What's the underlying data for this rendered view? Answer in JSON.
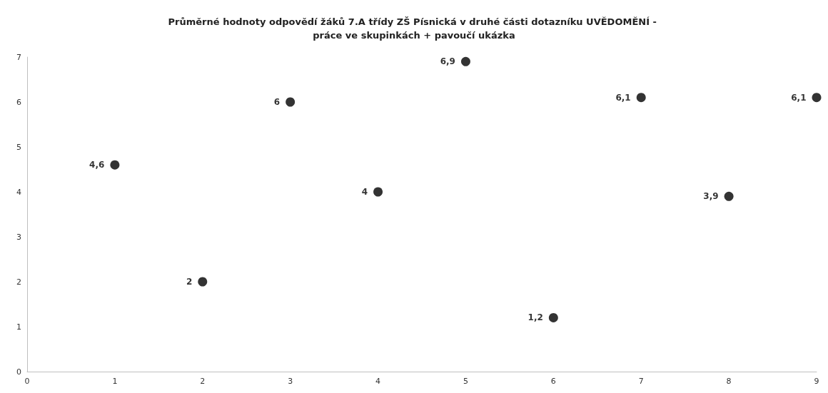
{
  "chart_data": {
    "type": "scatter",
    "title": "Průměrné hodnoty odpovědí žáků 7.A třídy ZŠ Písnická v druhé části dotazníku UVĚDOMĚNÍ - práce ve skupinkách + pavoučí ukázka",
    "x": [
      1,
      2,
      3,
      4,
      5,
      6,
      7,
      8,
      9
    ],
    "values": [
      4.6,
      2,
      6,
      4,
      6.9,
      1.2,
      6.1,
      3.9,
      6.1
    ],
    "value_labels": [
      "4,6",
      "2",
      "6",
      "4",
      "6,9",
      "1,2",
      "6,1",
      "3,9",
      "6,1"
    ],
    "color": "#000000",
    "marker": "circle",
    "xlim": [
      0,
      9
    ],
    "xticks": [
      0,
      1,
      2,
      3,
      4,
      5,
      6,
      7,
      8,
      9
    ],
    "ylim": [
      0,
      7
    ],
    "yticks": [
      0,
      1,
      2,
      3,
      4,
      5,
      6,
      7
    ],
    "grid": false
  }
}
